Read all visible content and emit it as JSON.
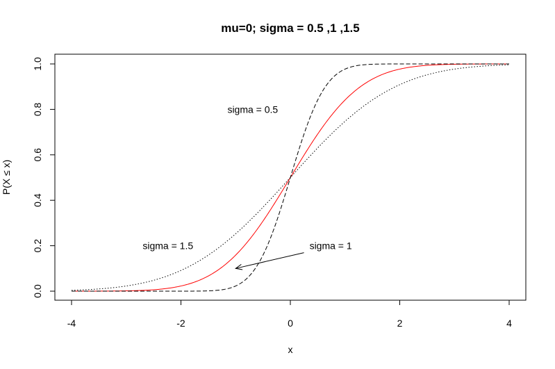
{
  "chart_data": {
    "type": "line",
    "title": "mu=0; sigma = 0.5 ,1 ,1.5",
    "xlabel": "x",
    "ylabel": "P(X ≤ x)",
    "xlim": [
      -4,
      4
    ],
    "ylim": [
      0,
      1
    ],
    "x_ticks": [
      -4,
      -2,
      0,
      2,
      4
    ],
    "x_tick_labels": [
      "-4",
      "-2",
      "0",
      "2",
      "4"
    ],
    "y_ticks": [
      0,
      0.2,
      0.4,
      0.6,
      0.8,
      1
    ],
    "y_tick_labels": [
      "0.0",
      "0.2",
      "0.4",
      "0.6",
      "0.8",
      "1.0"
    ],
    "grid": false,
    "x_range": [
      -4,
      4
    ],
    "series": [
      {
        "sigma": 1,
        "color": "#ff0000",
        "style": "solid"
      },
      {
        "sigma": 0.5,
        "color": "#000000",
        "style": "dashed"
      },
      {
        "sigma": 1.5,
        "color": "#000000",
        "style": "dotted"
      }
    ],
    "annotations": [
      {
        "text": "sigma = 0.5",
        "x": -1.15,
        "y": 0.8
      },
      {
        "text": "sigma = 1.5",
        "x": -2.7,
        "y": 0.2
      },
      {
        "text": "sigma = 1",
        "x": 0.35,
        "y": 0.2,
        "arrow_to": [
          -1.0,
          0.1
        ]
      }
    ]
  }
}
